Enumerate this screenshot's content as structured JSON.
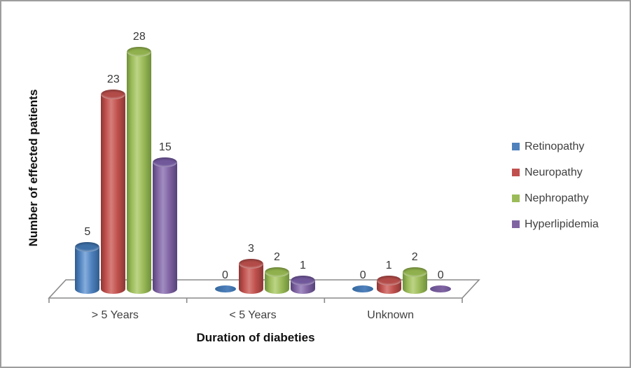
{
  "chart_data": {
    "type": "bar",
    "subtype": "3d-cylinder",
    "title": "",
    "xlabel": "Duration of diabeties",
    "ylabel": "Number of effected patients",
    "categories": [
      "> 5 Years",
      "< 5 Years",
      "Unknown"
    ],
    "series": [
      {
        "name": "Retinopathy",
        "values": [
          5,
          0,
          0
        ],
        "color": "#4F81BD",
        "shades": {
          "dark": "#2F5C8E",
          "base": "#4F81BD",
          "light": "#86AEDC",
          "top": "#3E70A8",
          "zero": "#35689E"
        }
      },
      {
        "name": "Neuropathy",
        "values": [
          23,
          3,
          1
        ],
        "color": "#C0504D",
        "shades": {
          "dark": "#8B3734",
          "base": "#C0504D",
          "light": "#D67E7A",
          "top": "#B34C49",
          "zero": "#A34340"
        }
      },
      {
        "name": "Nephropathy",
        "values": [
          28,
          2,
          2
        ],
        "color": "#9BBB59",
        "shades": {
          "dark": "#6F8F3B",
          "base": "#9BBB59",
          "light": "#BCD485",
          "top": "#8FB04C",
          "zero": "#7FA044"
        }
      },
      {
        "name": "Hyperlipidemia",
        "values": [
          15,
          1,
          0
        ],
        "color": "#8064A2",
        "shades": {
          "dark": "#55427A",
          "base": "#8064A2",
          "light": "#A28DC2",
          "top": "#71589B",
          "zero": "#675090"
        }
      }
    ],
    "ylim": [
      0,
      28
    ],
    "grid": false,
    "data_labels": true,
    "legend_position": "right",
    "axis_line_color": "#8a8a8a",
    "label_color": "#3f3f3f"
  }
}
